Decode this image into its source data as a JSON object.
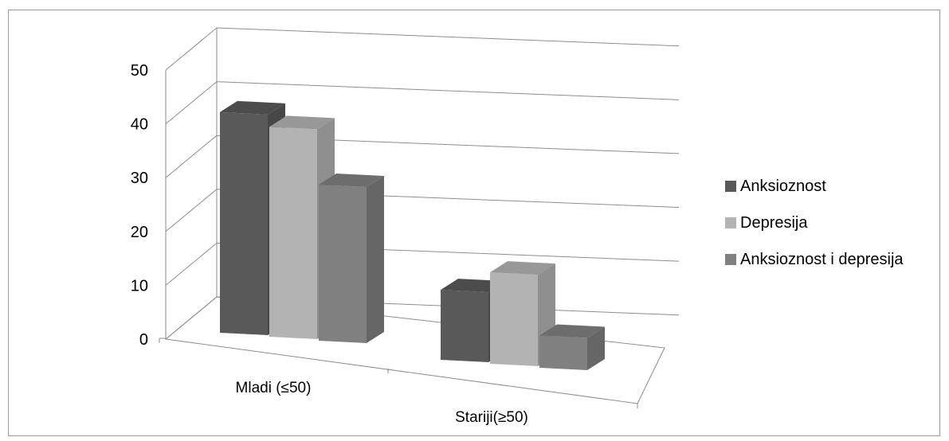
{
  "chart_data": {
    "type": "bar",
    "categories": [
      "Mladi (≤50)",
      "Stariji(≥50)"
    ],
    "series": [
      {
        "name": "Anksioznost",
        "values": [
          41,
          13
        ],
        "color": "#595959"
      },
      {
        "name": "Depresija",
        "values": [
          39,
          17
        ],
        "color": "#b3b3b3"
      },
      {
        "name": "Anksioznost i depresija",
        "values": [
          29,
          6
        ],
        "color": "#808080"
      }
    ],
    "ylim": [
      0,
      50
    ],
    "yticks": [
      "0",
      "10",
      "20",
      "30",
      "40",
      "50"
    ],
    "grid": true,
    "legend": "right",
    "style": "3d-clustered-column"
  }
}
